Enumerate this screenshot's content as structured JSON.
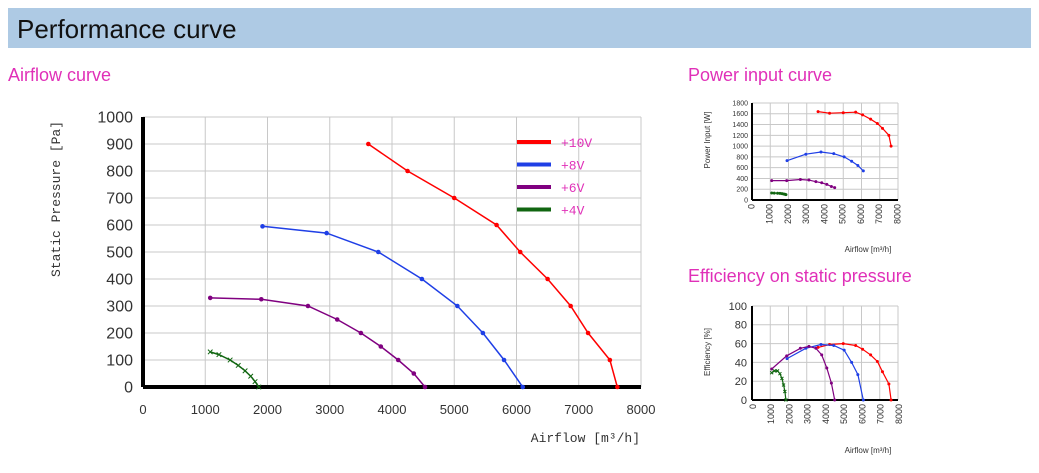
{
  "header": {
    "title": "Performance curve"
  },
  "sections": {
    "airflow": "Airflow curve",
    "power": "Power input curve",
    "efficiency": "Efficiency on static pressure"
  },
  "colors": {
    "red": "#ff0000",
    "blue": "#1f3fe6",
    "purple": "#800080",
    "green": "#116611",
    "title_pink": "#e030b8"
  },
  "chart_data": [
    {
      "type": "line",
      "title": "Airflow curve",
      "xlabel": "Airflow [m³/h]",
      "ylabel": "Static Pressure [Pa]",
      "xlim": [
        0,
        8000
      ],
      "ylim": [
        0,
        1000
      ],
      "xticks": [
        0,
        1000,
        2000,
        3000,
        4000,
        5000,
        6000,
        7000,
        8000
      ],
      "yticks": [
        0,
        100,
        200,
        300,
        400,
        500,
        600,
        700,
        800,
        900,
        1000
      ],
      "grid": true,
      "legend": "top-right",
      "series": [
        {
          "name": "+10V",
          "color": "#ff0000",
          "points": [
            [
              3620,
              900
            ],
            [
              4250,
              800
            ],
            [
              5000,
              700
            ],
            [
              5680,
              600
            ],
            [
              6060,
              500
            ],
            [
              6500,
              400
            ],
            [
              6870,
              300
            ],
            [
              7150,
              200
            ],
            [
              7500,
              100
            ],
            [
              7620,
              0
            ]
          ]
        },
        {
          "name": "+8V",
          "color": "#1f3fe6",
          "points": [
            [
              1920,
              595
            ],
            [
              2950,
              570
            ],
            [
              3780,
              500
            ],
            [
              4480,
              400
            ],
            [
              5050,
              300
            ],
            [
              5460,
              200
            ],
            [
              5800,
              100
            ],
            [
              6100,
              0
            ]
          ]
        },
        {
          "name": "+6V",
          "color": "#800080",
          "points": [
            [
              1080,
              330
            ],
            [
              1900,
              325
            ],
            [
              2650,
              300
            ],
            [
              3120,
              250
            ],
            [
              3500,
              200
            ],
            [
              3820,
              150
            ],
            [
              4100,
              100
            ],
            [
              4350,
              50
            ],
            [
              4530,
              0
            ]
          ]
        },
        {
          "name": "+4V",
          "color": "#116611",
          "points": [
            [
              1080,
              130
            ],
            [
              1220,
              120
            ],
            [
              1400,
              100
            ],
            [
              1530,
              80
            ],
            [
              1640,
              60
            ],
            [
              1730,
              40
            ],
            [
              1800,
              20
            ],
            [
              1860,
              0
            ]
          ]
        }
      ]
    },
    {
      "type": "line",
      "title": "Power input curve",
      "xlabel": "Airflow [m³/h]",
      "ylabel": "Power Input [W]",
      "xlim": [
        0,
        8000
      ],
      "ylim": [
        0,
        1800
      ],
      "xticks": [
        0,
        1000,
        2000,
        3000,
        4000,
        5000,
        6000,
        7000,
        8000
      ],
      "yticks": [
        0,
        200,
        400,
        600,
        800,
        1000,
        1200,
        1400,
        1600,
        1800
      ],
      "grid": true,
      "series": [
        {
          "name": "+10V",
          "color": "#ff0000",
          "points": [
            [
              3620,
              1640
            ],
            [
              4250,
              1610
            ],
            [
              5000,
              1620
            ],
            [
              5680,
              1630
            ],
            [
              6060,
              1580
            ],
            [
              6500,
              1500
            ],
            [
              6870,
              1420
            ],
            [
              7150,
              1330
            ],
            [
              7500,
              1200
            ],
            [
              7620,
              1000
            ]
          ]
        },
        {
          "name": "+8V",
          "color": "#1f3fe6",
          "points": [
            [
              1920,
              730
            ],
            [
              2950,
              850
            ],
            [
              3780,
              890
            ],
            [
              4480,
              860
            ],
            [
              5050,
              800
            ],
            [
              5460,
              720
            ],
            [
              5800,
              640
            ],
            [
              6100,
              540
            ]
          ]
        },
        {
          "name": "+6V",
          "color": "#800080",
          "points": [
            [
              1080,
              360
            ],
            [
              1900,
              360
            ],
            [
              2650,
              380
            ],
            [
              3120,
              370
            ],
            [
              3500,
              340
            ],
            [
              3820,
              320
            ],
            [
              4100,
              290
            ],
            [
              4350,
              250
            ],
            [
              4530,
              230
            ]
          ]
        },
        {
          "name": "+4V",
          "color": "#116611",
          "points": [
            [
              1080,
              130
            ],
            [
              1220,
              128
            ],
            [
              1400,
              126
            ],
            [
              1530,
              122
            ],
            [
              1640,
              118
            ],
            [
              1730,
              112
            ],
            [
              1800,
              106
            ],
            [
              1860,
              100
            ]
          ]
        }
      ]
    },
    {
      "type": "line",
      "title": "Efficiency on static pressure",
      "xlabel": "Airflow [m³/h]",
      "ylabel": "Efficiency [%]",
      "xlim": [
        0,
        8000
      ],
      "ylim": [
        0,
        100
      ],
      "xticks": [
        0,
        1000,
        2000,
        3000,
        4000,
        5000,
        6000,
        7000,
        8000
      ],
      "yticks": [
        0,
        20,
        40,
        60,
        80,
        100
      ],
      "grid": true,
      "series": [
        {
          "name": "+10V",
          "color": "#ff0000",
          "points": [
            [
              3620,
              56
            ],
            [
              4250,
              59
            ],
            [
              5000,
              60
            ],
            [
              5680,
              58
            ],
            [
              6060,
              54
            ],
            [
              6500,
              48
            ],
            [
              6870,
              41
            ],
            [
              7150,
              30
            ],
            [
              7500,
              17
            ],
            [
              7620,
              0
            ]
          ]
        },
        {
          "name": "+8V",
          "color": "#1f3fe6",
          "points": [
            [
              1920,
              44
            ],
            [
              2950,
              55
            ],
            [
              3780,
              59
            ],
            [
              4480,
              58
            ],
            [
              5050,
              53
            ],
            [
              5460,
              40
            ],
            [
              5800,
              27
            ],
            [
              6100,
              0
            ]
          ]
        },
        {
          "name": "+6V",
          "color": "#800080",
          "points": [
            [
              1080,
              33
            ],
            [
              1900,
              47
            ],
            [
              2650,
              55
            ],
            [
              3120,
              57
            ],
            [
              3500,
              55
            ],
            [
              3820,
              48
            ],
            [
              4100,
              34
            ],
            [
              4350,
              18
            ],
            [
              4530,
              0
            ]
          ]
        },
        {
          "name": "+4V",
          "color": "#116611",
          "points": [
            [
              1080,
              29
            ],
            [
              1220,
              31
            ],
            [
              1400,
              31
            ],
            [
              1530,
              28
            ],
            [
              1640,
              23
            ],
            [
              1730,
              16
            ],
            [
              1800,
              9
            ],
            [
              1860,
              0
            ]
          ]
        }
      ]
    }
  ]
}
